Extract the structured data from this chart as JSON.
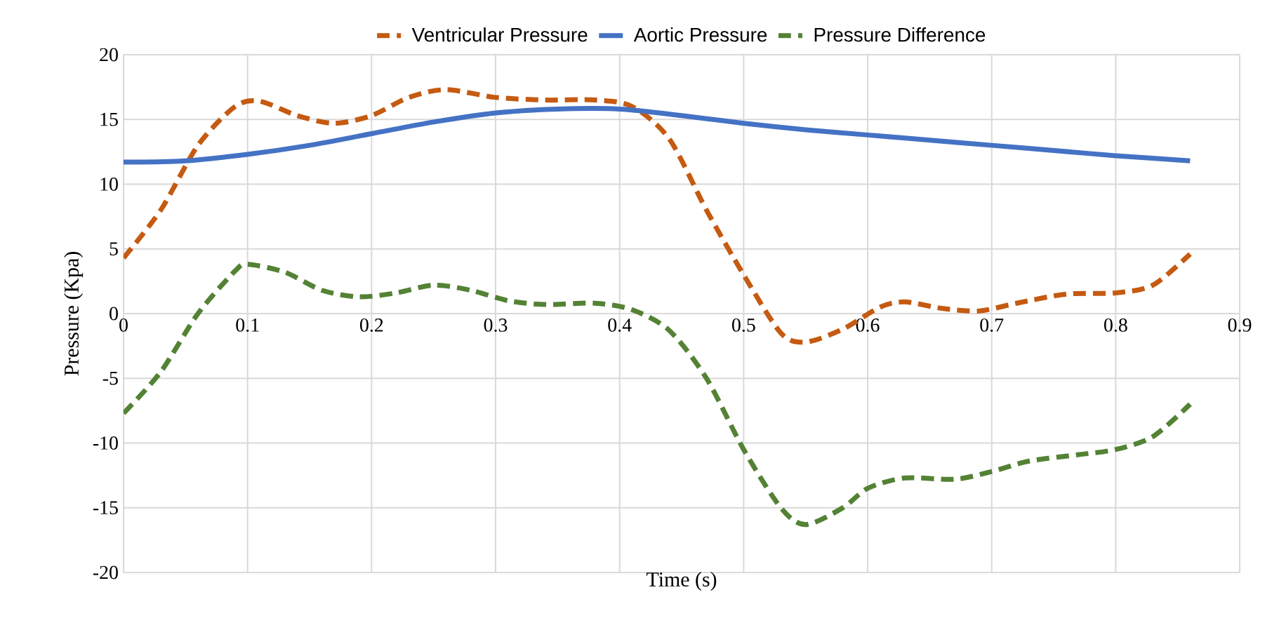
{
  "chart_data": {
    "type": "line",
    "xlabel": "Time (s)",
    "ylabel": "Pressure (Kpa)",
    "xlim": [
      0,
      0.9
    ],
    "xticks": [
      0,
      0.1,
      0.2,
      0.3,
      0.4,
      0.5,
      0.6,
      0.7,
      0.8,
      0.9
    ],
    "ylim": [
      -20,
      20
    ],
    "yticks": [
      -20,
      -15,
      -10,
      -5,
      0,
      5,
      10,
      15,
      20
    ],
    "grid": true,
    "legend": "top",
    "marker": "none",
    "series": [
      {
        "name": "Ventricular Pressure",
        "color": "#c55a11",
        "line_style": "dashed",
        "x": [
          0,
          0.03,
          0.06,
          0.09,
          0.11,
          0.14,
          0.17,
          0.2,
          0.23,
          0.26,
          0.3,
          0.34,
          0.38,
          0.41,
          0.44,
          0.47,
          0.5,
          0.53,
          0.55,
          0.58,
          0.61,
          0.63,
          0.66,
          0.69,
          0.72,
          0.76,
          0.8,
          0.83,
          0.86
        ],
        "values": [
          4.3,
          8,
          13,
          16,
          16.4,
          15.3,
          14.7,
          15.3,
          16.7,
          17.3,
          16.7,
          16.5,
          16.5,
          16,
          13.5,
          8,
          3,
          -1.5,
          -2.2,
          -1.2,
          0.5,
          0.9,
          0.4,
          0.2,
          0.8,
          1.5,
          1.6,
          2.2,
          4.6
        ]
      },
      {
        "name": "Aortic Pressure",
        "color": "#4472c4",
        "line_style": "solid",
        "x": [
          0,
          0.05,
          0.1,
          0.15,
          0.2,
          0.25,
          0.3,
          0.35,
          0.4,
          0.45,
          0.5,
          0.55,
          0.6,
          0.65,
          0.7,
          0.75,
          0.8,
          0.86
        ],
        "values": [
          11.7,
          11.8,
          12.3,
          13.0,
          13.9,
          14.8,
          15.5,
          15.8,
          15.8,
          15.3,
          14.7,
          14.2,
          13.8,
          13.4,
          13.0,
          12.6,
          12.2,
          11.8
        ]
      },
      {
        "name": "Pressure Difference",
        "color": "#548235",
        "line_style": "dashed",
        "x": [
          0,
          0.03,
          0.06,
          0.09,
          0.1,
          0.13,
          0.16,
          0.19,
          0.22,
          0.25,
          0.28,
          0.31,
          0.34,
          0.38,
          0.41,
          0.44,
          0.47,
          0.5,
          0.53,
          0.55,
          0.58,
          0.6,
          0.63,
          0.67,
          0.7,
          0.73,
          0.77,
          0.8,
          0.83,
          0.86
        ],
        "values": [
          -7.7,
          -4.5,
          0,
          3.3,
          3.8,
          3.2,
          1.8,
          1.3,
          1.6,
          2.2,
          1.8,
          1.0,
          0.7,
          0.8,
          0.3,
          -1.3,
          -5,
          -10.5,
          -15,
          -16.3,
          -15,
          -13.5,
          -12.7,
          -12.8,
          -12.2,
          -11.4,
          -10.9,
          -10.5,
          -9.5,
          -7
        ]
      }
    ]
  }
}
